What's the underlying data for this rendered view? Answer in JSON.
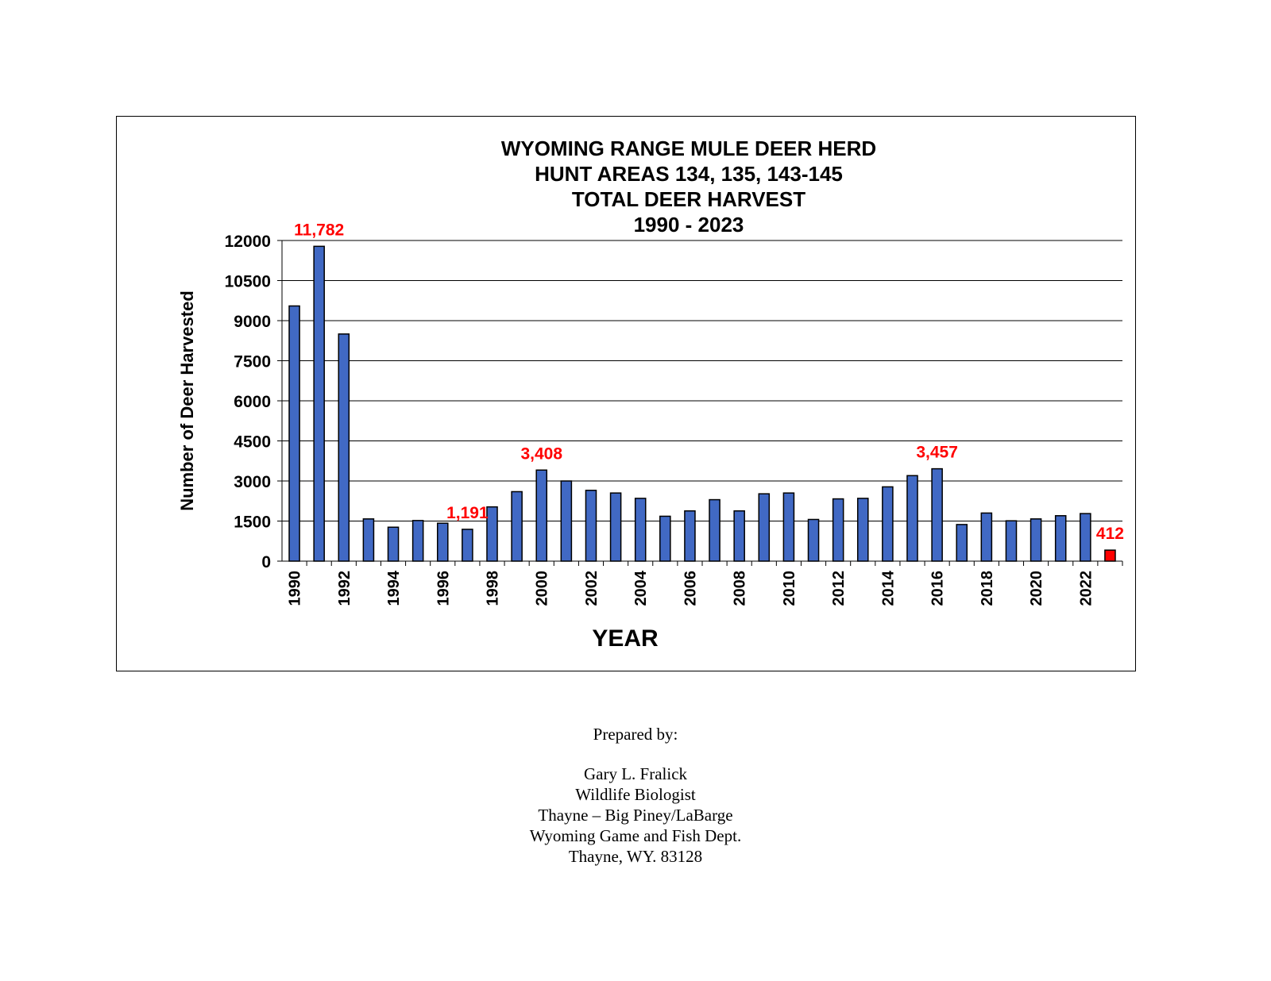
{
  "chart_data": {
    "type": "bar",
    "title": [
      "WYOMING RANGE MULE DEER HERD",
      "HUNT AREAS 134, 135, 143-145",
      "TOTAL DEER HARVEST",
      "1990 - 2023"
    ],
    "xlabel": "YEAR",
    "ylabel": "Number of  Deer Harvested",
    "ylim": [
      0,
      12000
    ],
    "yticks": [
      0,
      1500,
      3000,
      4500,
      6000,
      7500,
      9000,
      10500,
      12000
    ],
    "grid": true,
    "x_tick_labels": [
      "1990",
      "1992",
      "1994",
      "1996",
      "1998",
      "2000",
      "2002",
      "2004",
      "2006",
      "2008",
      "2010",
      "2012",
      "2014",
      "2016",
      "2018",
      "2020",
      "2022"
    ],
    "categories": [
      "1990",
      "1991",
      "1992",
      "1993",
      "1994",
      "1995",
      "1996",
      "1997",
      "1998",
      "1999",
      "2000",
      "2001",
      "2002",
      "2003",
      "2004",
      "2005",
      "2006",
      "2007",
      "2008",
      "2009",
      "2010",
      "2011",
      "2012",
      "2013",
      "2014",
      "2015",
      "2016",
      "2017",
      "2018",
      "2019",
      "2020",
      "2021",
      "2022",
      "2023"
    ],
    "values": [
      9550,
      11782,
      8500,
      1580,
      1270,
      1520,
      1420,
      1191,
      2030,
      2600,
      3408,
      3000,
      2650,
      2550,
      2350,
      1680,
      1880,
      2300,
      1880,
      2520,
      2550,
      1560,
      2330,
      2350,
      2780,
      3200,
      3457,
      1370,
      1800,
      1510,
      1580,
      1700,
      1780,
      412
    ],
    "colors": {
      "bar": "#4169c4",
      "highlight": "#ff0000",
      "annotation": "#ff0000"
    },
    "highlight_category": "2023",
    "annotations": [
      {
        "category": "1991",
        "text": "11,782"
      },
      {
        "category": "1997",
        "text": "1,191"
      },
      {
        "category": "2000",
        "text": "3,408"
      },
      {
        "category": "2016",
        "text": "3,457"
      },
      {
        "category": "2023",
        "text": "412"
      }
    ]
  },
  "prepared": {
    "heading": "Prepared by:",
    "name": "Gary L. Fralick",
    "role": "Wildlife Biologist",
    "office": "Thayne – Big Piney/LaBarge",
    "agency": "Wyoming Game and Fish Dept.",
    "address": "Thayne, WY. 83128"
  }
}
